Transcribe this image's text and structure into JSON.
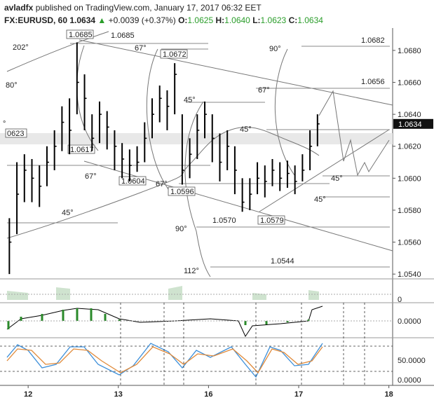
{
  "header": {
    "author": "avladfx",
    "published": "published on TradingView.com, January 17, 2017 06:32 EET",
    "symbol": "FX:EURUSD, 60",
    "last": "1.0634",
    "change": "+0.0039 (+0.37%)",
    "open_label": "O:",
    "open": "1.0625",
    "high_label": "H:",
    "high": "1.0640",
    "low_label": "L:",
    "low": "1.0623",
    "close_label": "C:",
    "close": "1.0634"
  },
  "chart_data": {
    "type": "ohlc",
    "x": [
      1,
      3,
      5,
      7,
      9,
      11,
      13,
      15,
      17,
      19,
      21,
      23,
      25,
      27,
      29,
      31,
      33,
      35,
      37,
      39,
      41,
      43,
      45,
      47,
      49,
      51,
      53,
      55,
      57,
      59,
      61,
      63,
      65,
      67,
      69,
      71,
      73,
      75,
      77,
      79,
      81,
      83
    ],
    "high": [
      1.0575,
      1.061,
      1.0615,
      1.0612,
      1.0608,
      1.062,
      1.063,
      1.0645,
      1.065,
      1.0685,
      1.0665,
      1.064,
      1.0648,
      1.0642,
      1.063,
      1.0622,
      1.0618,
      1.062,
      1.0635,
      1.065,
      1.0658,
      1.0655,
      1.0672,
      1.064,
      1.0625,
      1.064,
      1.0648,
      1.064,
      1.0628,
      1.063,
      1.062,
      1.06,
      1.06,
      1.061,
      1.0608,
      1.0612,
      1.061,
      1.0611,
      1.0608,
      1.0615,
      1.063,
      1.064
    ],
    "low": [
      1.054,
      1.0565,
      1.0585,
      1.0585,
      1.0582,
      1.0595,
      1.0605,
      1.0617,
      1.0615,
      1.064,
      1.063,
      1.0617,
      1.0622,
      1.0618,
      1.0605,
      1.06,
      1.0598,
      1.0604,
      1.061,
      1.0625,
      1.0635,
      1.063,
      1.064,
      1.0596,
      1.06,
      1.0612,
      1.0625,
      1.061,
      1.0598,
      1.0605,
      1.059,
      1.0579,
      1.058,
      1.059,
      1.0588,
      1.0595,
      1.0592,
      1.0594,
      1.059,
      1.0598,
      1.0605,
      1.062
    ],
    "close": [
      1.056,
      1.059,
      1.0605,
      1.06,
      1.0595,
      1.061,
      1.062,
      1.0635,
      1.063,
      1.066,
      1.065,
      1.0625,
      1.064,
      1.0632,
      1.062,
      1.0612,
      1.0608,
      1.061,
      1.0625,
      1.064,
      1.065,
      1.0645,
      1.0665,
      1.0605,
      1.0615,
      1.063,
      1.064,
      1.0625,
      1.061,
      1.062,
      1.0605,
      1.0585,
      1.059,
      1.06,
      1.0598,
      1.0605,
      1.06,
      1.0603,
      1.0598,
      1.0605,
      1.062,
      1.0634
    ],
    "color": "#000000",
    "xlim": [
      0,
      103
    ],
    "xticks": [
      {
        "value": 6,
        "label": "12"
      },
      {
        "value": 30,
        "label": "13"
      },
      {
        "value": 54,
        "label": "16"
      },
      {
        "value": 78,
        "label": "17"
      },
      {
        "value": 102,
        "label": "18"
      }
    ],
    "ylim": [
      1.0537,
      1.0694
    ],
    "yticks": [
      {
        "value": 1.054,
        "label": "1.0540"
      },
      {
        "value": 1.056,
        "label": "1.0560"
      },
      {
        "value": 1.058,
        "label": "1.0580"
      },
      {
        "value": 1.06,
        "label": "1.0600"
      },
      {
        "value": 1.062,
        "label": "1.0620"
      },
      {
        "value": 1.064,
        "label": "1.0640"
      },
      {
        "value": 1.066,
        "label": "1.0660"
      },
      {
        "value": 1.068,
        "label": "1.0680"
      }
    ]
  },
  "price_tag": "1.0634",
  "annotations": {
    "levels": [
      "1.0685",
      "1.0685",
      "1.0672",
      "1.0617",
      "1.0604",
      "1.0596",
      "1.0570",
      "1.0579",
      "1.0544",
      "1.0682",
      "1.0656",
      "0623"
    ],
    "angles": [
      "202°",
      "80°",
      "67°",
      "45°",
      "90°",
      "67°",
      "45°",
      "67°",
      "67°",
      "45°",
      "90°",
      "112°",
      "45°",
      "45°",
      "°"
    ]
  },
  "indicators": {
    "volume_tick": "0",
    "macd_tick": "0.0000",
    "stoch_ticks": [
      "50.0000",
      "0.0000"
    ]
  }
}
